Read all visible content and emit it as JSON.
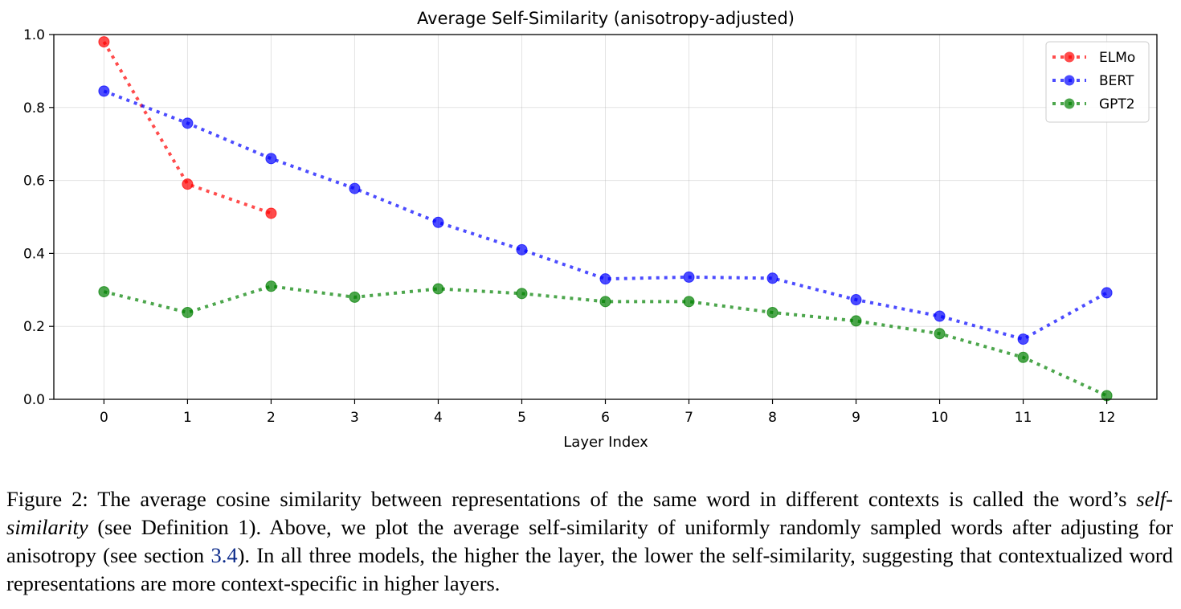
{
  "chart_data": {
    "type": "line",
    "title": "Average Self-Similarity (anisotropy-adjusted)",
    "xlabel": "Layer Index",
    "ylabel": "",
    "x": [
      0,
      1,
      2,
      3,
      4,
      5,
      6,
      7,
      8,
      9,
      10,
      11,
      12
    ],
    "x_tick_labels": [
      "0",
      "1",
      "2",
      "3",
      "4",
      "5",
      "6",
      "7",
      "8",
      "9",
      "10",
      "11",
      "12"
    ],
    "y_tick_labels": [
      "0.0",
      "0.2",
      "0.4",
      "0.6",
      "0.8",
      "1.0"
    ],
    "y_ticks": [
      0.0,
      0.2,
      0.4,
      0.6,
      0.8,
      1.0
    ],
    "xlim": [
      -0.6,
      12.6
    ],
    "ylim": [
      0.0,
      1.0
    ],
    "grid": true,
    "legend_position": "top-right",
    "series": [
      {
        "name": "ELMo",
        "color": "#ff0000",
        "x": [
          0,
          1,
          2
        ],
        "values": [
          0.98,
          0.59,
          0.51
        ]
      },
      {
        "name": "BERT",
        "color": "#0000ff",
        "x": [
          0,
          1,
          2,
          3,
          4,
          5,
          6,
          7,
          8,
          9,
          10,
          11,
          12
        ],
        "values": [
          0.845,
          0.757,
          0.66,
          0.578,
          0.485,
          0.41,
          0.33,
          0.335,
          0.332,
          0.273,
          0.228,
          0.165,
          0.292
        ]
      },
      {
        "name": "GPT2",
        "color": "#008000",
        "x": [
          0,
          1,
          2,
          3,
          4,
          5,
          6,
          7,
          8,
          9,
          10,
          11,
          12
        ],
        "values": [
          0.295,
          0.238,
          0.31,
          0.28,
          0.303,
          0.29,
          0.268,
          0.268,
          0.238,
          0.215,
          0.18,
          0.115,
          0.01
        ]
      }
    ]
  },
  "caption": {
    "p1": "Figure 2: The average cosine similarity between representations of the same word in different contexts is called the word’s ",
    "em": "self-similarity",
    "p2": " (see Definition 1).  Above, we plot the average self-similarity of uniformly randomly sampled words after adjusting for anisotropy (see section ",
    "ref": "3.4",
    "p3": "). In all three models, the higher the layer, the lower the self-similarity, suggesting that contextualized word representations are more context-specific in higher layers."
  }
}
